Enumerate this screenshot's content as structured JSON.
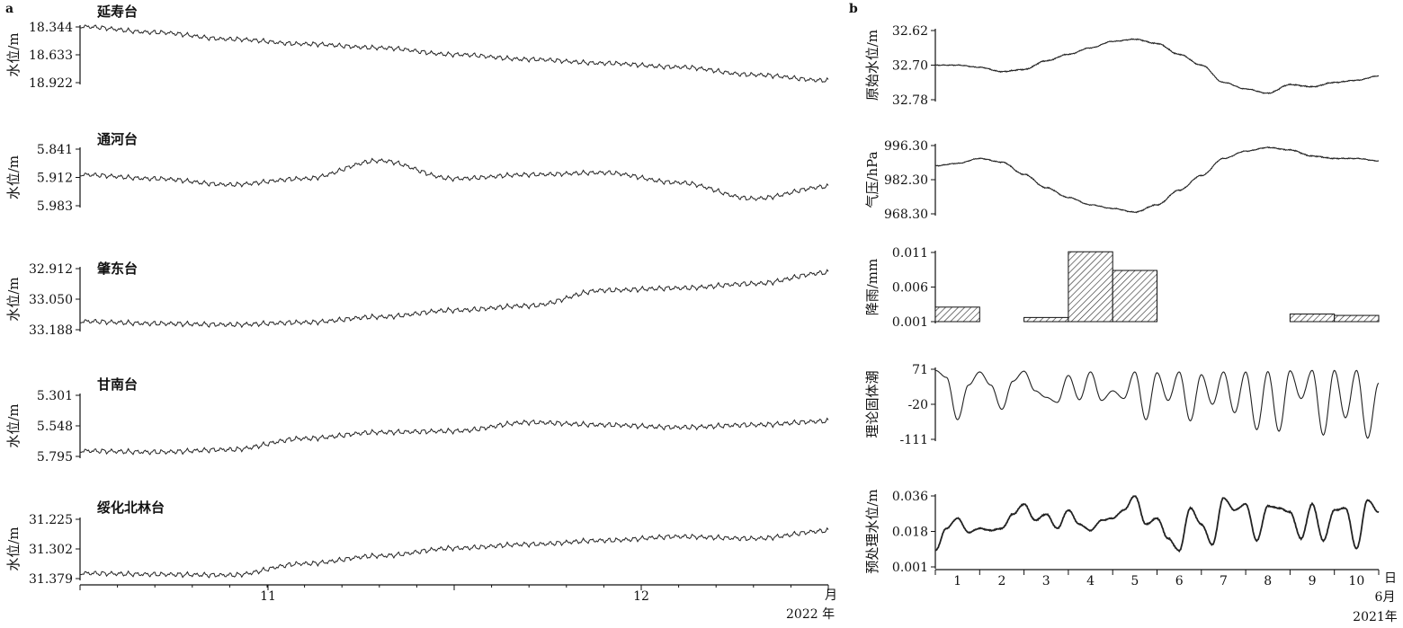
{
  "figure": {
    "panel_a": "a",
    "panel_b": "b"
  },
  "chart_data": [
    {
      "type": "line",
      "panel": "a",
      "station": "延寿台",
      "ylabel": "水位/m",
      "y_ticks": [
        "18.344",
        "18.633",
        "18.922"
      ],
      "ylim": [
        18.922,
        18.344
      ],
      "y_inverted": true,
      "x_ticks": [
        "11",
        "12"
      ],
      "x_unit": "月",
      "year_label": "2022 年",
      "series": [
        {
          "x": [
            0,
            0.1,
            0.2,
            0.3,
            0.4,
            0.5,
            0.6,
            0.7,
            0.8,
            0.9,
            1.0
          ],
          "values": [
            18.34,
            18.4,
            18.47,
            18.52,
            18.56,
            18.63,
            18.68,
            18.72,
            18.76,
            18.84,
            18.9
          ]
        }
      ]
    },
    {
      "type": "line",
      "panel": "a",
      "station": "通河台",
      "ylabel": "水位/m",
      "y_ticks": [
        "5.841",
        "5.912",
        "5.983"
      ],
      "ylim": [
        5.983,
        5.841
      ],
      "y_inverted": true,
      "series": [
        {
          "x": [
            0,
            0.1,
            0.2,
            0.3,
            0.4,
            0.5,
            0.6,
            0.7,
            0.8,
            0.9,
            1.0
          ],
          "values": [
            5.905,
            5.915,
            5.93,
            5.915,
            5.87,
            5.915,
            5.905,
            5.9,
            5.925,
            5.965,
            5.935
          ]
        }
      ]
    },
    {
      "type": "line",
      "panel": "a",
      "station": "肇东台",
      "ylabel": "水位/m",
      "y_ticks": [
        "32.912",
        "33.050",
        "33.188"
      ],
      "ylim": [
        33.188,
        32.912
      ],
      "y_inverted": true,
      "series": [
        {
          "x": [
            0,
            0.1,
            0.2,
            0.3,
            0.4,
            0.5,
            0.6,
            0.7,
            0.8,
            0.9,
            1.0
          ],
          "values": [
            33.15,
            33.16,
            33.165,
            33.155,
            33.13,
            33.1,
            33.08,
            33.01,
            33.0,
            32.98,
            32.93
          ]
        }
      ]
    },
    {
      "type": "line",
      "panel": "a",
      "station": "甘南台",
      "ylabel": "水位/m",
      "y_ticks": [
        "5.301",
        "5.548",
        "5.795"
      ],
      "ylim": [
        5.795,
        5.301
      ],
      "y_inverted": true,
      "series": [
        {
          "x": [
            0,
            0.1,
            0.2,
            0.3,
            0.4,
            0.5,
            0.6,
            0.7,
            0.8,
            0.9,
            1.0
          ],
          "values": [
            5.75,
            5.76,
            5.74,
            5.65,
            5.6,
            5.59,
            5.52,
            5.54,
            5.56,
            5.54,
            5.51
          ]
        }
      ]
    },
    {
      "type": "line",
      "panel": "a",
      "station": "绥化北林台",
      "ylabel": "水位/m",
      "y_ticks": [
        "31.225",
        "31.302",
        "31.379"
      ],
      "ylim": [
        31.379,
        31.225
      ],
      "y_inverted": true,
      "series": [
        {
          "x": [
            0,
            0.1,
            0.2,
            0.3,
            0.4,
            0.5,
            0.6,
            0.7,
            0.8,
            0.9,
            1.0
          ],
          "values": [
            31.365,
            31.368,
            31.37,
            31.34,
            31.32,
            31.3,
            31.29,
            31.28,
            31.27,
            31.275,
            31.255
          ]
        }
      ]
    },
    {
      "type": "line",
      "panel": "b",
      "ylabel": "原始水位/m",
      "y_ticks": [
        "32.62",
        "32.70",
        "32.78"
      ],
      "ylim": [
        32.78,
        32.62
      ],
      "y_inverted": true,
      "series": [
        {
          "x": [
            0.5,
            1,
            1.5,
            2,
            2.5,
            3,
            3.5,
            4,
            4.5,
            5,
            5.5,
            6,
            6.5,
            7,
            7.5,
            8,
            8.5,
            9,
            9.5,
            10,
            10.5
          ],
          "values": [
            32.7,
            32.7,
            32.705,
            32.715,
            32.71,
            32.69,
            32.675,
            32.66,
            32.645,
            32.64,
            32.65,
            32.675,
            32.7,
            32.74,
            32.755,
            32.765,
            32.745,
            32.75,
            32.74,
            32.735,
            32.725
          ]
        }
      ]
    },
    {
      "type": "line",
      "panel": "b",
      "ylabel": "气压/hPa",
      "y_ticks": [
        "996.30",
        "982.30",
        "968.30"
      ],
      "ylim": [
        968.3,
        996.3
      ],
      "series": [
        {
          "x": [
            0.5,
            1,
            1.5,
            2,
            2.5,
            3,
            3.5,
            4,
            4.5,
            5,
            5.5,
            6,
            6.5,
            7,
            7.5,
            8,
            8.5,
            9,
            9.5,
            10,
            10.5
          ],
          "values": [
            988.0,
            989.0,
            991.0,
            989.5,
            984.5,
            979.0,
            975.0,
            972.0,
            970.5,
            969.0,
            972.0,
            978.0,
            984.0,
            991.0,
            994.0,
            995.5,
            994.5,
            992.0,
            991.0,
            991.0,
            990.0
          ]
        }
      ]
    },
    {
      "type": "bar",
      "panel": "b",
      "ylabel": "降雨/mm",
      "y_ticks": [
        "0.011",
        "0.006",
        "0.001"
      ],
      "ylim": [
        0.001,
        0.011
      ],
      "x": [
        1,
        3,
        4,
        5,
        9,
        10
      ],
      "values": [
        0.0031,
        0.0016,
        0.0111,
        0.0084,
        0.0021,
        0.0019
      ]
    },
    {
      "type": "line",
      "panel": "b",
      "ylabel": "理论固体潮",
      "y_ticks": [
        "71",
        "-20",
        "-111"
      ],
      "ylim": [
        -111,
        71
      ],
      "series": [
        {
          "x": [
            0.5,
            0.75,
            1,
            1.25,
            1.5,
            1.75,
            2,
            2.25,
            2.5,
            2.75,
            3,
            3.25,
            3.5,
            3.75,
            4,
            4.25,
            4.5,
            4.75,
            5,
            5.25,
            5.5,
            5.75,
            6,
            6.25,
            6.5,
            6.75,
            7,
            7.25,
            7.5,
            7.75,
            8,
            8.25,
            8.5,
            8.75,
            9,
            9.25,
            9.5,
            9.75,
            10,
            10.25,
            10.5
          ],
          "values": [
            68,
            50,
            -60,
            30,
            64,
            30,
            -33,
            40,
            66,
            15,
            -2,
            -15,
            55,
            -8,
            64,
            -10,
            15,
            -5,
            64,
            -60,
            62,
            -10,
            64,
            -63,
            57,
            -20,
            64,
            -42,
            64,
            -86,
            65,
            -90,
            67,
            -5,
            68,
            -100,
            68,
            -55,
            68,
            -108,
            35
          ]
        }
      ]
    },
    {
      "type": "line",
      "panel": "b",
      "ylabel": "预处理水位/m",
      "y_ticks": [
        "0.036",
        "0.018",
        "0.001"
      ],
      "ylim": [
        0.001,
        0.036
      ],
      "x_ticks": [
        "1",
        "2",
        "3",
        "4",
        "5",
        "6",
        "7",
        "8",
        "9",
        "10"
      ],
      "x_unit": "日",
      "month_label": "6月",
      "year_label": "2021年",
      "series": [
        {
          "x": [
            0.5,
            0.75,
            1,
            1.25,
            1.5,
            1.75,
            2,
            2.25,
            2.5,
            2.75,
            3,
            3.25,
            3.5,
            3.75,
            4,
            4.25,
            4.5,
            4.75,
            5,
            5.25,
            5.5,
            5.75,
            6,
            6.25,
            6.5,
            6.75,
            7,
            7.25,
            7.5,
            7.75,
            8,
            8.25,
            8.5,
            8.75,
            9,
            9.25,
            9.5,
            9.75,
            10,
            10.25,
            10.5
          ],
          "values": [
            0.009,
            0.02,
            0.025,
            0.018,
            0.02,
            0.019,
            0.02,
            0.027,
            0.032,
            0.024,
            0.027,
            0.02,
            0.029,
            0.022,
            0.019,
            0.024,
            0.025,
            0.029,
            0.036,
            0.022,
            0.025,
            0.015,
            0.009,
            0.03,
            0.022,
            0.012,
            0.035,
            0.029,
            0.032,
            0.014,
            0.031,
            0.03,
            0.028,
            0.015,
            0.032,
            0.014,
            0.029,
            0.03,
            0.01,
            0.034,
            0.028
          ]
        }
      ]
    }
  ]
}
